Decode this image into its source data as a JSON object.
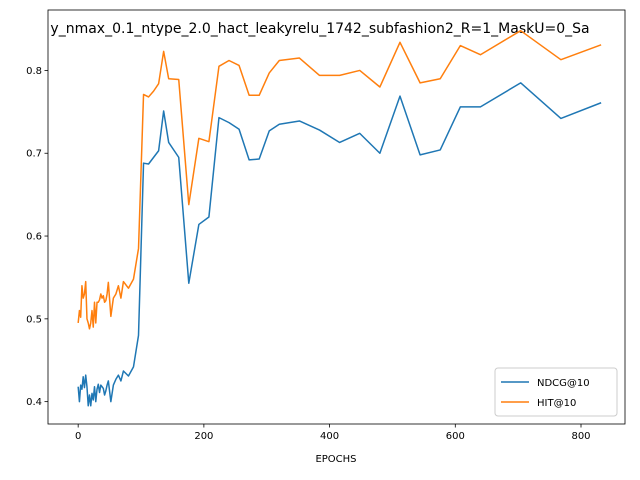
{
  "chart_data": {
    "type": "line",
    "title": "y_nmax_0.1_ntype_2.0_hact_leakyrelu_1742_subfashion2_R=1_MaskU=0_Sa",
    "xlabel": "EPOCHS",
    "ylabel": "",
    "xlim": [
      -48,
      870
    ],
    "ylim": [
      0.373,
      0.873
    ],
    "xticks": [
      0,
      200,
      400,
      600,
      800
    ],
    "yticks": [
      0.4,
      0.5,
      0.6,
      0.7,
      0.8
    ],
    "ytick_labels": [
      "0.4",
      "0.5",
      "0.6",
      "0.7",
      "0.8"
    ],
    "grid": false,
    "legend_position": "lower right",
    "series": [
      {
        "name": "NDCG@10",
        "color": "#1f77b4",
        "x": [
          0,
          2,
          4,
          6,
          8,
          10,
          12,
          14,
          16,
          18,
          20,
          22,
          24,
          26,
          28,
          30,
          32,
          34,
          36,
          38,
          40,
          42,
          44,
          46,
          48,
          52,
          56,
          60,
          64,
          68,
          72,
          80,
          88,
          96,
          104,
          112,
          120,
          128,
          136,
          144,
          160,
          176,
          192,
          208,
          224,
          240,
          256,
          272,
          288,
          304,
          320,
          352,
          384,
          416,
          448,
          480,
          512,
          544,
          576,
          608,
          640,
          704,
          768,
          832
        ],
        "y": [
          0.418,
          0.4,
          0.42,
          0.415,
          0.43,
          0.417,
          0.432,
          0.418,
          0.395,
          0.408,
          0.395,
          0.41,
          0.402,
          0.418,
          0.4,
          0.415,
          0.421,
          0.411,
          0.42,
          0.418,
          0.416,
          0.408,
          0.413,
          0.42,
          0.425,
          0.4,
          0.42,
          0.427,
          0.432,
          0.425,
          0.437,
          0.431,
          0.442,
          0.48,
          0.688,
          0.687,
          0.695,
          0.703,
          0.751,
          0.713,
          0.695,
          0.543,
          0.614,
          0.623,
          0.743,
          0.737,
          0.729,
          0.692,
          0.693,
          0.727,
          0.735,
          0.739,
          0.728,
          0.713,
          0.724,
          0.7,
          0.769,
          0.698,
          0.704,
          0.756,
          0.756,
          0.785,
          0.742,
          0.761
        ]
      },
      {
        "name": "HIT@10",
        "color": "#ff7f0e",
        "x": [
          0,
          2,
          4,
          6,
          8,
          10,
          12,
          14,
          16,
          18,
          20,
          22,
          24,
          26,
          28,
          30,
          32,
          34,
          36,
          38,
          40,
          42,
          44,
          46,
          48,
          52,
          56,
          60,
          64,
          68,
          72,
          80,
          88,
          96,
          104,
          112,
          120,
          128,
          136,
          144,
          160,
          176,
          192,
          208,
          224,
          240,
          256,
          272,
          288,
          304,
          320,
          352,
          384,
          416,
          448,
          480,
          512,
          544,
          576,
          608,
          640,
          704,
          768,
          832
        ],
        "y": [
          0.495,
          0.51,
          0.502,
          0.54,
          0.525,
          0.53,
          0.545,
          0.5,
          0.495,
          0.488,
          0.495,
          0.51,
          0.49,
          0.52,
          0.495,
          0.52,
          0.52,
          0.523,
          0.53,
          0.525,
          0.528,
          0.52,
          0.522,
          0.53,
          0.544,
          0.503,
          0.525,
          0.53,
          0.54,
          0.525,
          0.545,
          0.537,
          0.548,
          0.585,
          0.771,
          0.768,
          0.775,
          0.784,
          0.823,
          0.79,
          0.789,
          0.638,
          0.718,
          0.714,
          0.805,
          0.812,
          0.806,
          0.77,
          0.77,
          0.797,
          0.812,
          0.815,
          0.794,
          0.794,
          0.8,
          0.78,
          0.834,
          0.785,
          0.79,
          0.83,
          0.819,
          0.848,
          0.813,
          0.831
        ]
      }
    ]
  }
}
